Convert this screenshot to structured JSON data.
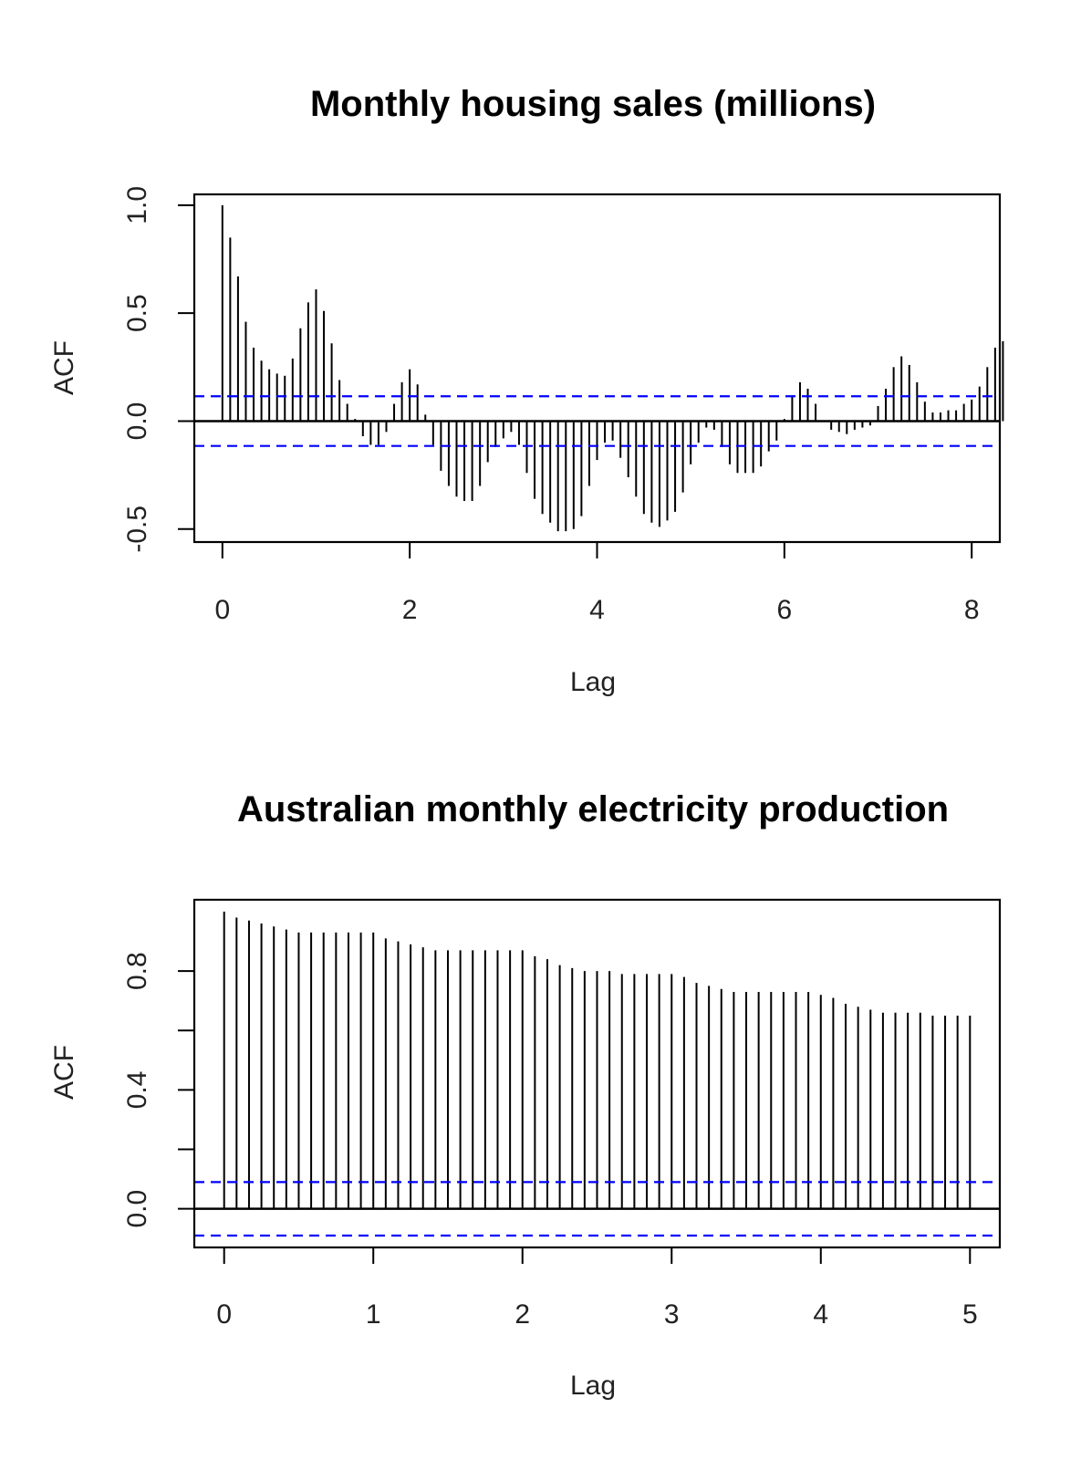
{
  "chart_data": [
    {
      "type": "bar",
      "title": "Monthly housing sales (millions)",
      "xlabel": "Lag",
      "ylabel": "ACF",
      "xlim": [
        -0.3,
        8.3
      ],
      "ylim": [
        -0.56,
        1.05
      ],
      "xticks": [
        "0",
        "2",
        "4",
        "6",
        "8"
      ],
      "yticks": [
        "-0.5",
        "0.0",
        "0.5",
        "1.0"
      ],
      "ci": 0.115,
      "ci_color": "#0000ff",
      "bar_color": "#000000",
      "lag_step": 0.0833333,
      "values": [
        1.0,
        0.85,
        0.67,
        0.46,
        0.34,
        0.28,
        0.24,
        0.22,
        0.21,
        0.29,
        0.43,
        0.55,
        0.61,
        0.51,
        0.36,
        0.19,
        0.08,
        0.01,
        -0.07,
        -0.11,
        -0.11,
        -0.05,
        0.08,
        0.18,
        0.24,
        0.17,
        0.03,
        -0.11,
        -0.23,
        -0.3,
        -0.35,
        -0.37,
        -0.37,
        -0.3,
        -0.19,
        -0.12,
        -0.08,
        -0.05,
        -0.11,
        -0.24,
        -0.36,
        -0.43,
        -0.47,
        -0.51,
        -0.51,
        -0.5,
        -0.44,
        -0.3,
        -0.18,
        -0.1,
        -0.09,
        -0.17,
        -0.26,
        -0.35,
        -0.43,
        -0.47,
        -0.49,
        -0.46,
        -0.42,
        -0.33,
        -0.2,
        -0.1,
        -0.03,
        -0.04,
        -0.12,
        -0.2,
        -0.24,
        -0.24,
        -0.24,
        -0.21,
        -0.14,
        -0.09,
        0.01,
        0.12,
        0.18,
        0.15,
        0.08,
        0.0,
        -0.04,
        -0.05,
        -0.06,
        -0.04,
        -0.03,
        -0.02,
        0.07,
        0.15,
        0.25,
        0.3,
        0.26,
        0.18,
        0.09,
        0.04,
        0.04,
        0.05,
        0.05,
        0.08,
        0.1,
        0.16,
        0.25,
        0.34,
        0.37
      ]
    },
    {
      "type": "bar",
      "title": "Australian monthly electricity production",
      "xlabel": "Lag",
      "ylabel": "ACF",
      "xlim": [
        -0.2,
        5.2
      ],
      "ylim": [
        -0.13,
        1.04
      ],
      "xticks": [
        "0",
        "1",
        "2",
        "3",
        "4",
        "5"
      ],
      "yticks": [
        "0.0",
        "0.4",
        "0.8"
      ],
      "yticks_minor": [
        0.2,
        0.6
      ],
      "ci": 0.09,
      "ci_color": "#0000ff",
      "bar_color": "#000000",
      "lag_step": 0.0833333,
      "values": [
        1.0,
        0.98,
        0.97,
        0.96,
        0.95,
        0.94,
        0.93,
        0.93,
        0.93,
        0.93,
        0.93,
        0.93,
        0.93,
        0.91,
        0.9,
        0.89,
        0.88,
        0.87,
        0.87,
        0.87,
        0.87,
        0.87,
        0.87,
        0.87,
        0.87,
        0.85,
        0.84,
        0.82,
        0.81,
        0.8,
        0.8,
        0.8,
        0.79,
        0.79,
        0.79,
        0.79,
        0.79,
        0.78,
        0.76,
        0.75,
        0.74,
        0.73,
        0.73,
        0.73,
        0.73,
        0.73,
        0.73,
        0.73,
        0.72,
        0.71,
        0.69,
        0.68,
        0.67,
        0.66,
        0.66,
        0.66,
        0.66,
        0.65,
        0.65,
        0.65,
        0.65
      ]
    }
  ]
}
